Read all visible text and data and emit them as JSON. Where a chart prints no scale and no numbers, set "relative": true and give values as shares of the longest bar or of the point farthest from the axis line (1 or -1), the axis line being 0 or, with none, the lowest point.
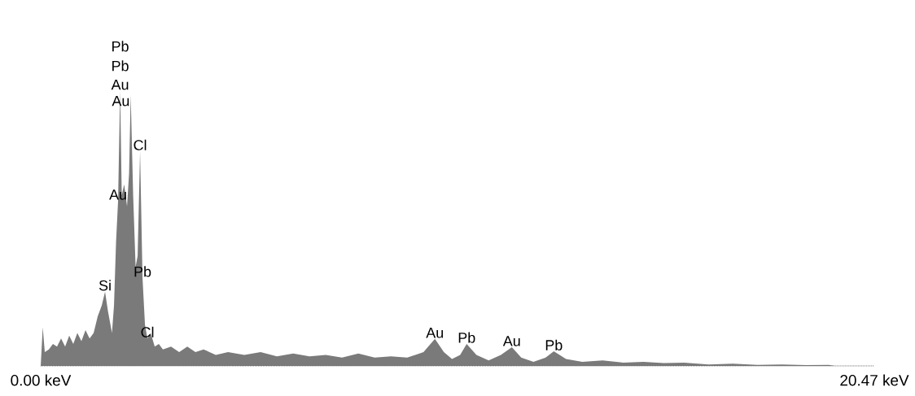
{
  "chart_data": {
    "type": "area",
    "relative": true,
    "color": "#7a7a7a",
    "x": [
      0.0,
      0.05,
      0.1,
      0.2,
      0.3,
      0.4,
      0.5,
      0.6,
      0.7,
      0.8,
      0.9,
      1.0,
      1.1,
      1.2,
      1.3,
      1.4,
      1.5,
      1.58,
      1.65,
      1.75,
      1.8,
      1.85,
      1.9,
      1.95,
      1.99,
      2.05,
      2.12,
      2.17,
      2.21,
      2.27,
      2.33,
      2.38,
      2.44,
      2.5,
      2.56,
      2.62,
      2.7,
      2.8,
      2.9,
      3.0,
      3.2,
      3.4,
      3.6,
      3.8,
      4.0,
      4.3,
      4.6,
      5.0,
      5.4,
      5.8,
      6.2,
      6.6,
      7.0,
      7.4,
      7.8,
      8.2,
      8.6,
      9.0,
      9.4,
      9.68,
      9.9,
      10.1,
      10.3,
      10.46,
      10.7,
      11.0,
      11.3,
      11.57,
      11.8,
      12.1,
      12.4,
      12.6,
      12.9,
      13.3,
      13.8,
      14.3,
      14.8,
      15.3,
      15.8,
      16.4,
      17.0,
      17.6,
      18.2,
      18.8,
      19.35,
      19.5
    ],
    "values": [
      0.0,
      0.14,
      0.05,
      0.06,
      0.08,
      0.07,
      0.1,
      0.07,
      0.11,
      0.08,
      0.12,
      0.09,
      0.13,
      0.1,
      0.12,
      0.18,
      0.22,
      0.27,
      0.2,
      0.12,
      0.22,
      0.45,
      0.6,
      1.0,
      0.62,
      0.66,
      0.58,
      0.7,
      0.985,
      0.62,
      0.36,
      0.4,
      0.78,
      0.32,
      0.15,
      0.1,
      0.12,
      0.07,
      0.08,
      0.06,
      0.07,
      0.05,
      0.07,
      0.05,
      0.06,
      0.04,
      0.05,
      0.04,
      0.05,
      0.035,
      0.045,
      0.035,
      0.04,
      0.03,
      0.045,
      0.03,
      0.035,
      0.03,
      0.05,
      0.098,
      0.05,
      0.025,
      0.04,
      0.08,
      0.04,
      0.02,
      0.04,
      0.068,
      0.03,
      0.015,
      0.03,
      0.053,
      0.025,
      0.015,
      0.02,
      0.012,
      0.015,
      0.01,
      0.012,
      0.005,
      0.008,
      0.004,
      0.005,
      0.003,
      0.004,
      0.0
    ],
    "xlim": [
      0,
      20.47
    ],
    "xticks": [
      {
        "value": 0,
        "label": "0.00 keV"
      },
      {
        "value": 20.47,
        "label": "20.47 keV"
      }
    ],
    "annotations": [
      "Pb",
      "Pb",
      {
        "text": "Au",
        "x": 2.21,
        "y": 0.985
      },
      {
        "text": "Au",
        "x": 1.95,
        "y": 1.0
      },
      {
        "text": "Cl",
        "x": 2.44,
        "y": 0.78
      },
      {
        "text": "Au",
        "x": 1.9,
        "y": 0.6
      },
      {
        "text": "Pb",
        "x": 2.5,
        "y": 0.32
      },
      {
        "text": "Si",
        "x": 1.58,
        "y": 0.27
      },
      {
        "text": "Cl",
        "x": 2.62,
        "y": 0.1
      },
      {
        "text": "Au",
        "x": 9.68,
        "y": 0.098
      },
      {
        "text": "Pb",
        "x": 10.46,
        "y": 0.08
      },
      {
        "text": "Au",
        "x": 11.57,
        "y": 0.068
      },
      {
        "text": "Pb",
        "x": 12.6,
        "y": 0.053
      }
    ]
  }
}
